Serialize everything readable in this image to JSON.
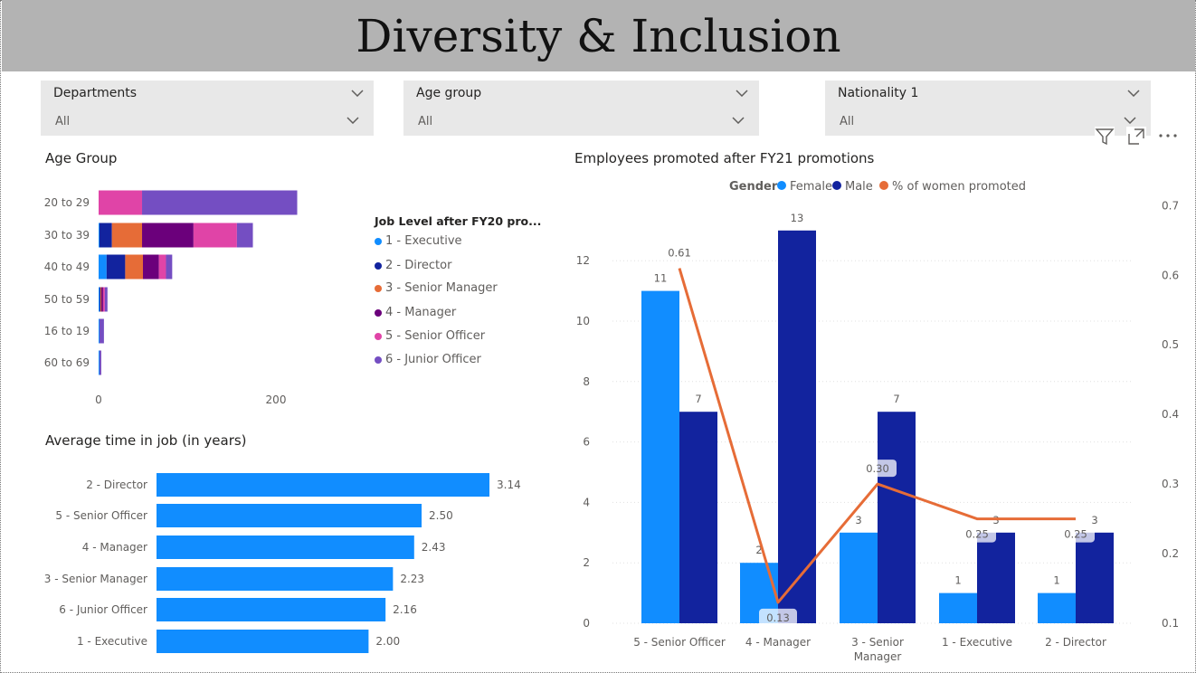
{
  "page": {
    "title": "Diversity & Inclusion"
  },
  "slicers": [
    {
      "title": "Departments",
      "value": "All"
    },
    {
      "title": "Age group",
      "value": "All"
    },
    {
      "title": "Nationality 1",
      "value": "All"
    }
  ],
  "colors": {
    "banner": "#b3b3b3",
    "slicer_bg": "#e8e8e8",
    "executive": "#118DFF",
    "director": "#12239E",
    "senior_manager": "#E66C37",
    "manager": "#6B007B",
    "senior_officer": "#E044A7",
    "junior_officer": "#744EC2",
    "female": "#118DFF",
    "male": "#12239E",
    "women_line": "#E66C37",
    "avg_bar": "#118DFF"
  },
  "visual_header_icons": [
    "filter-icon",
    "focus-mode-icon",
    "more-options-icon"
  ],
  "chart_data": [
    {
      "id": "age_group",
      "type": "bar",
      "orientation": "horizontal",
      "stacked": true,
      "title": "Age Group",
      "legend_title": "Job Level after FY20 pro...",
      "legend_position": "right",
      "categories": [
        "20 to 29",
        "30 to 39",
        "40 to 49",
        "50 to 59",
        "16 to 19",
        "60 to 69"
      ],
      "series": [
        {
          "name": "1 - Executive",
          "color": "#118DFF",
          "values": [
            0,
            1,
            9,
            1,
            1,
            1
          ]
        },
        {
          "name": "2 - Director",
          "color": "#12239E",
          "values": [
            0,
            14,
            21,
            1,
            0,
            0
          ]
        },
        {
          "name": "3 - Senior Manager",
          "color": "#E66C37",
          "values": [
            0,
            34,
            20,
            1,
            0,
            0
          ]
        },
        {
          "name": "4 - Manager",
          "color": "#6B007B",
          "values": [
            0,
            58,
            18,
            2,
            0,
            0
          ]
        },
        {
          "name": "5 - Senior Officer",
          "color": "#E044A7",
          "values": [
            49,
            49,
            8,
            2,
            0,
            0
          ]
        },
        {
          "name": "6 - Junior Officer",
          "color": "#744EC2",
          "values": [
            175,
            18,
            7,
            3,
            5,
            2
          ]
        }
      ],
      "x_ticks": [
        "0",
        "200"
      ],
      "xlim": [
        0,
        250
      ]
    },
    {
      "id": "avg_time_in_job",
      "type": "bar",
      "orientation": "horizontal",
      "title": "Average time in job (in years)",
      "categories": [
        "2 - Director",
        "5 - Senior Officer",
        "4 - Manager",
        "3 - Senior Manager",
        "6 - Junior Officer",
        "1 - Executive"
      ],
      "values": [
        3.14,
        2.5,
        2.43,
        2.23,
        2.16,
        2.0
      ],
      "data_labels": [
        "3.14",
        "2.50",
        "2.43",
        "2.23",
        "2.16",
        "2.00"
      ],
      "xlim": [
        0,
        3.5
      ]
    },
    {
      "id": "promoted_fy21",
      "type": "bar",
      "combo": "clustered column + line",
      "title": "Employees promoted after FY21 promotions",
      "legend_title": "Gender",
      "legend_position": "top",
      "categories": [
        "5 - Senior Officer",
        "4 - Manager",
        "3 - Senior Manager",
        "1 - Executive",
        "2 - Director"
      ],
      "category_lines": [
        [
          "5 - Senior Officer"
        ],
        [
          "4 - Manager"
        ],
        [
          "3 - Senior",
          "Manager"
        ],
        [
          "1 - Executive"
        ],
        [
          "2 - Director"
        ]
      ],
      "series": [
        {
          "name": "Female",
          "color": "#118DFF",
          "values": [
            11,
            2,
            3,
            1,
            1
          ]
        },
        {
          "name": "Male",
          "color": "#12239E",
          "values": [
            7,
            13,
            7,
            3,
            3
          ]
        }
      ],
      "line_series": {
        "name": "% of women promoted",
        "color": "#E66C37",
        "values": [
          0.61,
          0.13,
          0.3,
          0.25,
          0.25
        ],
        "labels": [
          "0.61",
          "0.13",
          "0.30",
          "0.25",
          "0.25"
        ]
      },
      "y_ticks": [
        "0",
        "2",
        "4",
        "6",
        "8",
        "10",
        "12"
      ],
      "ylim": [
        0,
        14
      ],
      "y2_ticks": [
        "0.1",
        "0.2",
        "0.3",
        "0.4",
        "0.5",
        "0.6",
        "0.7"
      ],
      "y2lim": [
        0.1,
        0.7
      ],
      "grid": true
    }
  ]
}
